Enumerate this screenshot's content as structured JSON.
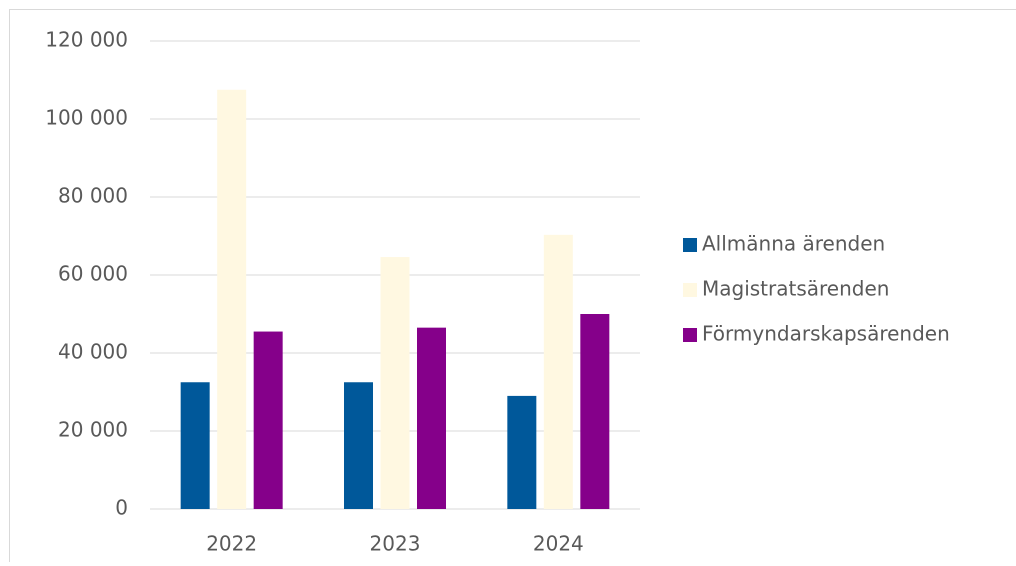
{
  "chart_data": {
    "type": "bar",
    "categories": [
      "2022",
      "2023",
      "2024"
    ],
    "series": [
      {
        "name": "Allmänna ärenden",
        "color": "#00589a",
        "values": [
          32500,
          32500,
          29000
        ]
      },
      {
        "name": "Magistratsärenden",
        "color": "#fff8e1",
        "values": [
          107500,
          64600,
          70300
        ]
      },
      {
        "name": "Förmyndarskapsärenden",
        "color": "#85008a",
        "values": [
          45500,
          46500,
          50000
        ]
      }
    ],
    "ylim": [
      0,
      120000
    ],
    "yticks": [
      0,
      {
        "value": 20000,
        "label": "20 000"
      },
      {
        "value": 40000,
        "label": "40 000"
      },
      {
        "value": 60000,
        "label": "60 000"
      },
      {
        "value": 80000,
        "label": "80 000"
      },
      {
        "value": 100000,
        "label": "100 000"
      },
      {
        "value": 120000,
        "label": "120 000"
      }
    ],
    "grid": true,
    "legend": "right"
  }
}
